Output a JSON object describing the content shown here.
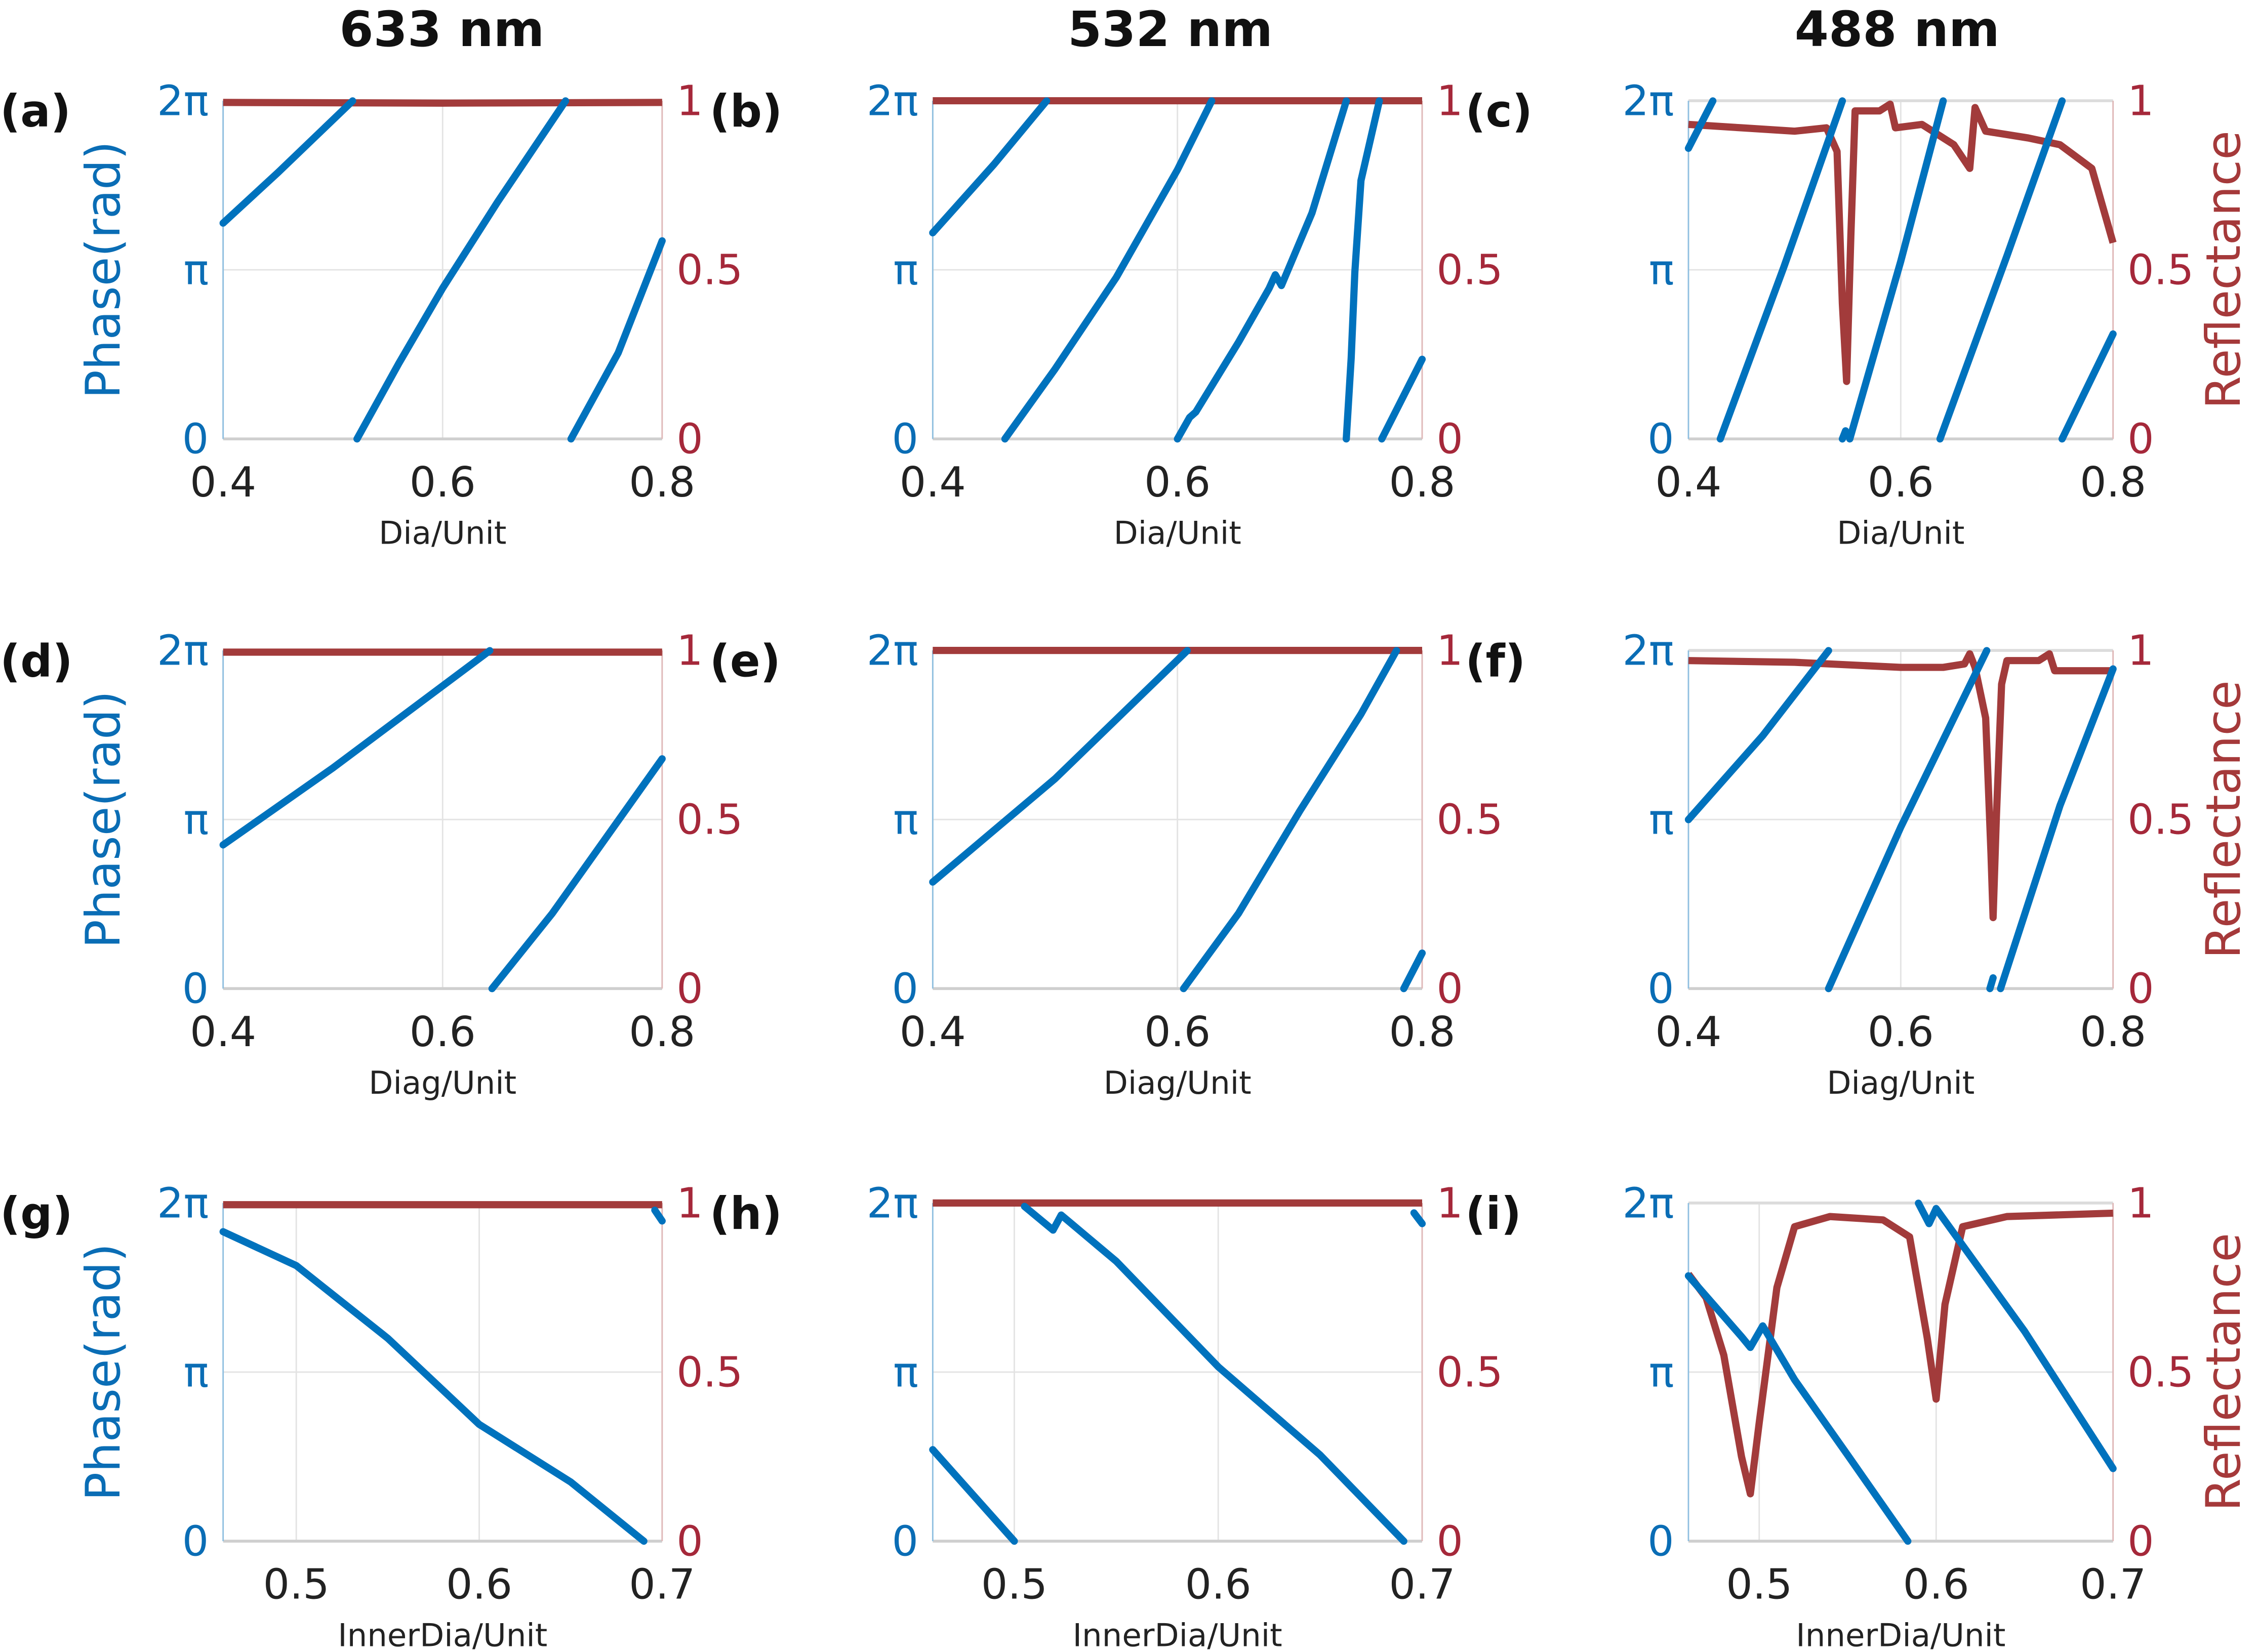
{
  "column_titles": [
    "633 nm",
    "532 nm",
    "488 nm"
  ],
  "colors": {
    "phase": "#0072BD",
    "reflectance": "#A23B3B",
    "left_axis": "#0a6db5",
    "right_axis": "#a5283a",
    "grid": "#e3e3e3"
  },
  "left_ylabel": "Phase(rad)",
  "right_ylabel": "Reflectance",
  "left_ytick_labels": [
    "0",
    "π",
    "2π"
  ],
  "right_ytick_labels": [
    "0",
    "0.5",
    "1"
  ],
  "chart_data": [
    {
      "panel": "(a)",
      "type": "line",
      "xlabel": "Dia/Unit",
      "xlim": [
        0.4,
        0.8
      ],
      "xticks": [
        0.4,
        0.6,
        0.8
      ],
      "xtick_labels": [
        "0.4",
        "0.6",
        "0.8"
      ],
      "ylim_left": [
        0,
        6.2832
      ],
      "ylim_right": [
        0,
        1
      ],
      "grid": true,
      "phase_segments": [
        [
          [
            0.4,
            4.01
          ],
          [
            0.45,
            4.95
          ],
          [
            0.518,
            6.28
          ]
        ],
        [
          [
            0.522,
            0
          ],
          [
            0.56,
            1.4
          ],
          [
            0.6,
            2.8
          ],
          [
            0.65,
            4.4
          ],
          [
            0.712,
            6.28
          ]
        ],
        [
          [
            0.717,
            0
          ],
          [
            0.76,
            1.6
          ],
          [
            0.8,
            3.68
          ]
        ]
      ],
      "reflectance": [
        [
          0.4,
          0.995
        ],
        [
          0.6,
          0.993
        ],
        [
          0.8,
          0.995
        ]
      ]
    },
    {
      "panel": "(b)",
      "type": "line",
      "xlabel": "Dia/Unit",
      "xlim": [
        0.4,
        0.8
      ],
      "xticks": [
        0.4,
        0.6,
        0.8
      ],
      "xtick_labels": [
        "0.4",
        "0.6",
        "0.8"
      ],
      "ylim_left": [
        0,
        6.2832
      ],
      "ylim_right": [
        0,
        1
      ],
      "grid": true,
      "phase_segments": [
        [
          [
            0.4,
            3.83
          ],
          [
            0.45,
            5.1
          ],
          [
            0.493,
            6.28
          ]
        ],
        [
          [
            0.459,
            0
          ],
          [
            0.5,
            1.3
          ],
          [
            0.55,
            3.0
          ],
          [
            0.6,
            5.0
          ],
          [
            0.628,
            6.28
          ]
        ],
        [
          [
            0.6,
            0
          ],
          [
            0.61,
            0.4
          ],
          [
            0.615,
            0.5
          ],
          [
            0.65,
            1.8
          ],
          [
            0.675,
            2.8
          ],
          [
            0.68,
            3.05
          ],
          [
            0.685,
            2.85
          ],
          [
            0.71,
            4.2
          ],
          [
            0.738,
            6.28
          ]
        ],
        [
          [
            0.738,
            0
          ],
          [
            0.742,
            1.5
          ],
          [
            0.745,
            3.1
          ],
          [
            0.75,
            4.8
          ],
          [
            0.765,
            6.28
          ]
        ],
        [
          [
            0.767,
            0
          ],
          [
            0.8,
            1.48
          ]
        ]
      ],
      "reflectance": [
        [
          0.4,
          1.0
        ],
        [
          0.8,
          1.0
        ]
      ]
    },
    {
      "panel": "(c)",
      "type": "line",
      "xlabel": "Dia/Unit",
      "xlim": [
        0.4,
        0.8
      ],
      "xticks": [
        0.4,
        0.6,
        0.8
      ],
      "xtick_labels": [
        "0.4",
        "0.6",
        "0.8"
      ],
      "ylim_left": [
        0,
        6.2832
      ],
      "ylim_right": [
        0,
        1
      ],
      "grid": true,
      "phase_segments": [
        [
          [
            0.4,
            5.4
          ],
          [
            0.423,
            6.28
          ]
        ],
        [
          [
            0.43,
            0
          ],
          [
            0.49,
            3.2
          ],
          [
            0.545,
            6.28
          ]
        ],
        [
          [
            0.545,
            0
          ],
          [
            0.548,
            0.15
          ]
        ],
        [
          [
            0.552,
            0
          ],
          [
            0.6,
            3.3
          ],
          [
            0.64,
            6.28
          ]
        ],
        [
          [
            0.637,
            0
          ],
          [
            0.7,
            3.4
          ],
          [
            0.752,
            6.28
          ]
        ],
        [
          [
            0.752,
            0
          ],
          [
            0.8,
            1.95
          ]
        ]
      ],
      "reflectance": [
        [
          0.4,
          0.93
        ],
        [
          0.45,
          0.92
        ],
        [
          0.5,
          0.91
        ],
        [
          0.53,
          0.92
        ],
        [
          0.54,
          0.85
        ],
        [
          0.545,
          0.4
        ],
        [
          0.549,
          0.17
        ],
        [
          0.553,
          0.6
        ],
        [
          0.557,
          0.97
        ],
        [
          0.58,
          0.97
        ],
        [
          0.59,
          0.99
        ],
        [
          0.595,
          0.92
        ],
        [
          0.62,
          0.93
        ],
        [
          0.65,
          0.87
        ],
        [
          0.665,
          0.8
        ],
        [
          0.67,
          0.98
        ],
        [
          0.68,
          0.91
        ],
        [
          0.72,
          0.89
        ],
        [
          0.75,
          0.87
        ],
        [
          0.78,
          0.8
        ],
        [
          0.8,
          0.58
        ]
      ]
    },
    {
      "panel": "(d)",
      "type": "line",
      "xlabel": "Diag/Unit",
      "xlim": [
        0.4,
        0.8
      ],
      "xticks": [
        0.4,
        0.6,
        0.8
      ],
      "xtick_labels": [
        "0.4",
        "0.6",
        "0.8"
      ],
      "ylim_left": [
        0,
        6.2832
      ],
      "ylim_right": [
        0,
        1
      ],
      "grid": true,
      "phase_segments": [
        [
          [
            0.4,
            2.67
          ],
          [
            0.5,
            4.1
          ],
          [
            0.643,
            6.28
          ]
        ],
        [
          [
            0.645,
            0
          ],
          [
            0.7,
            1.4
          ],
          [
            0.8,
            4.27
          ]
        ]
      ],
      "reflectance": [
        [
          0.4,
          0.995
        ],
        [
          0.8,
          0.995
        ]
      ]
    },
    {
      "panel": "(e)",
      "type": "line",
      "xlabel": "Diag/Unit",
      "xlim": [
        0.4,
        0.8
      ],
      "xticks": [
        0.4,
        0.6,
        0.8
      ],
      "xtick_labels": [
        "0.4",
        "0.6",
        "0.8"
      ],
      "ylim_left": [
        0,
        6.2832
      ],
      "ylim_right": [
        0,
        1
      ],
      "grid": true,
      "phase_segments": [
        [
          [
            0.4,
            1.98
          ],
          [
            0.5,
            3.9
          ],
          [
            0.608,
            6.28
          ]
        ],
        [
          [
            0.605,
            0
          ],
          [
            0.65,
            1.4
          ],
          [
            0.7,
            3.3
          ],
          [
            0.75,
            5.1
          ],
          [
            0.779,
            6.28
          ]
        ],
        [
          [
            0.785,
            0
          ],
          [
            0.8,
            0.66
          ]
        ]
      ],
      "reflectance": [
        [
          0.4,
          1.0
        ],
        [
          0.8,
          1.0
        ]
      ]
    },
    {
      "panel": "(f)",
      "type": "line",
      "xlabel": "Diag/Unit",
      "xlim": [
        0.4,
        0.8
      ],
      "xticks": [
        0.4,
        0.6,
        0.8
      ],
      "xtick_labels": [
        "0.4",
        "0.6",
        "0.8"
      ],
      "ylim_left": [
        0,
        6.2832
      ],
      "ylim_right": [
        0,
        1
      ],
      "grid": true,
      "phase_segments": [
        [
          [
            0.4,
            3.14
          ],
          [
            0.47,
            4.7
          ],
          [
            0.532,
            6.28
          ]
        ],
        [
          [
            0.532,
            0
          ],
          [
            0.6,
            3.0
          ],
          [
            0.681,
            6.28
          ]
        ],
        [
          [
            0.684,
            0
          ],
          [
            0.687,
            0.2
          ]
        ],
        [
          [
            0.694,
            0
          ],
          [
            0.75,
            3.4
          ],
          [
            0.8,
            5.94
          ]
        ]
      ],
      "reflectance": [
        [
          0.4,
          0.97
        ],
        [
          0.5,
          0.965
        ],
        [
          0.6,
          0.95
        ],
        [
          0.64,
          0.95
        ],
        [
          0.66,
          0.96
        ],
        [
          0.665,
          0.99
        ],
        [
          0.67,
          0.95
        ],
        [
          0.68,
          0.8
        ],
        [
          0.685,
          0.4
        ],
        [
          0.687,
          0.21
        ],
        [
          0.69,
          0.5
        ],
        [
          0.695,
          0.9
        ],
        [
          0.7,
          0.97
        ],
        [
          0.73,
          0.97
        ],
        [
          0.74,
          0.99
        ],
        [
          0.745,
          0.94
        ],
        [
          0.8,
          0.94
        ]
      ]
    },
    {
      "panel": "(g)",
      "type": "line",
      "xlabel": "InnerDia/Unit",
      "xlim": [
        0.46,
        0.7
      ],
      "xticks": [
        0.5,
        0.6,
        0.7
      ],
      "xtick_labels": [
        "0.5",
        "0.6",
        "0.7"
      ],
      "ylim_left": [
        0,
        6.2832
      ],
      "ylim_right": [
        0,
        1
      ],
      "grid": true,
      "phase_segments": [
        [
          [
            0.46,
            5.75
          ],
          [
            0.5,
            5.12
          ],
          [
            0.55,
            3.77
          ],
          [
            0.6,
            2.17
          ],
          [
            0.65,
            1.1
          ],
          [
            0.69,
            0
          ]
        ],
        [
          [
            0.696,
            6.15
          ],
          [
            0.7,
            5.95
          ]
        ]
      ],
      "reflectance": [
        [
          0.46,
          0.995
        ],
        [
          0.7,
          0.995
        ]
      ]
    },
    {
      "panel": "(h)",
      "type": "line",
      "xlabel": "InnerDia/Unit",
      "xlim": [
        0.46,
        0.7
      ],
      "xticks": [
        0.5,
        0.6,
        0.7
      ],
      "xtick_labels": [
        "0.5",
        "0.6",
        "0.7"
      ],
      "ylim_left": [
        0,
        6.2832
      ],
      "ylim_right": [
        0,
        1
      ],
      "grid": true,
      "phase_segments": [
        [
          [
            0.46,
            1.7
          ],
          [
            0.5,
            0
          ]
        ],
        [
          [
            0.505,
            6.22
          ],
          [
            0.519,
            5.78
          ],
          [
            0.523,
            6.06
          ],
          [
            0.55,
            5.2
          ],
          [
            0.6,
            3.24
          ],
          [
            0.65,
            1.6
          ],
          [
            0.691,
            0
          ]
        ],
        [
          [
            0.696,
            6.1
          ],
          [
            0.7,
            5.9
          ]
        ]
      ],
      "reflectance": [
        [
          0.46,
          1.0
        ],
        [
          0.7,
          1.0
        ]
      ]
    },
    {
      "panel": "(i)",
      "type": "line",
      "xlabel": "InnerDia/Unit",
      "xlim": [
        0.46,
        0.7
      ],
      "xticks": [
        0.5,
        0.6,
        0.7
      ],
      "xtick_labels": [
        "0.5",
        "0.6",
        "0.7"
      ],
      "ylim_left": [
        0,
        6.2832
      ],
      "ylim_right": [
        0,
        1
      ],
      "grid": true,
      "phase_segments": [
        [
          [
            0.46,
            4.93
          ],
          [
            0.49,
            3.8
          ],
          [
            0.495,
            3.6
          ],
          [
            0.502,
            4.0
          ],
          [
            0.52,
            3.0
          ],
          [
            0.55,
            1.6
          ],
          [
            0.584,
            0
          ]
        ],
        [
          [
            0.59,
            6.28
          ],
          [
            0.596,
            5.9
          ],
          [
            0.6,
            6.18
          ],
          [
            0.65,
            3.9
          ],
          [
            0.7,
            1.35
          ]
        ]
      ],
      "reflectance": [
        [
          0.46,
          0.79
        ],
        [
          0.47,
          0.72
        ],
        [
          0.48,
          0.55
        ],
        [
          0.49,
          0.25
        ],
        [
          0.495,
          0.14
        ],
        [
          0.5,
          0.35
        ],
        [
          0.51,
          0.75
        ],
        [
          0.52,
          0.93
        ],
        [
          0.54,
          0.96
        ],
        [
          0.57,
          0.95
        ],
        [
          0.585,
          0.9
        ],
        [
          0.595,
          0.6
        ],
        [
          0.6,
          0.42
        ],
        [
          0.605,
          0.7
        ],
        [
          0.615,
          0.93
        ],
        [
          0.64,
          0.96
        ],
        [
          0.7,
          0.97
        ]
      ]
    }
  ]
}
